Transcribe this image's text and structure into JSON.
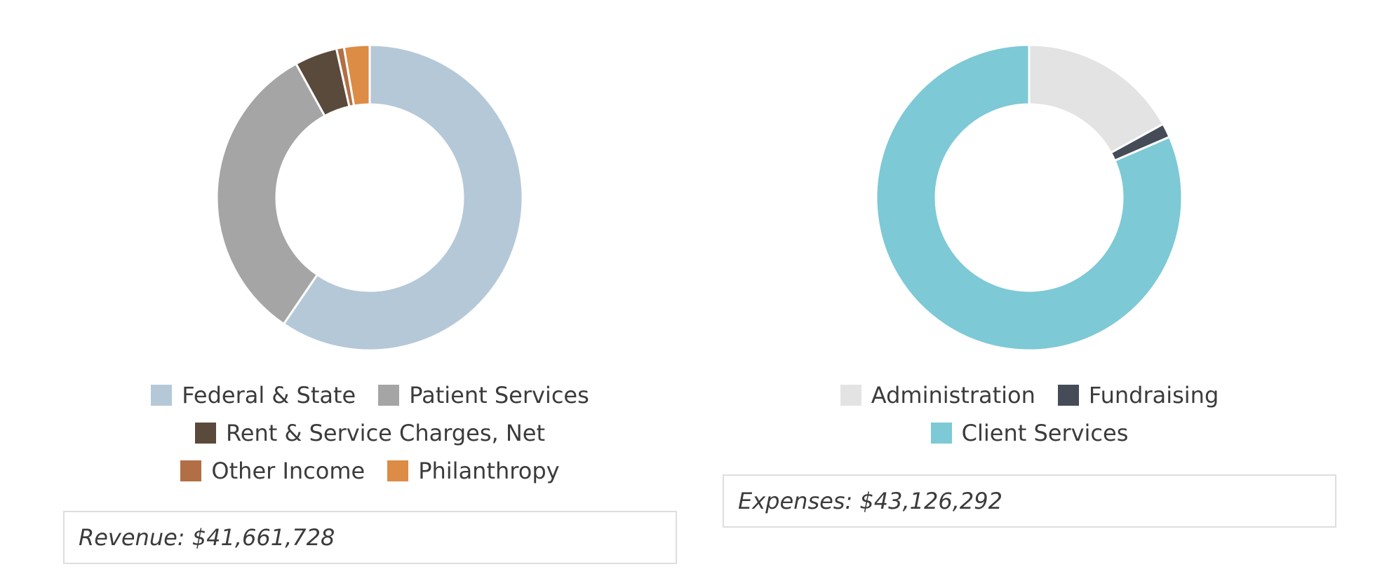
{
  "chart_data": [
    {
      "type": "pie",
      "variant": "donut",
      "categories": [
        "Federal & State",
        "Patient Services",
        "Rent & Service Charges, Net",
        "Other Income",
        "Philanthropy"
      ],
      "values": [
        59.5,
        32.5,
        4.5,
        0.8,
        2.7
      ],
      "colors": [
        "#b5c8d8",
        "#a5a5a5",
        "#5a4a3c",
        "#b26f45",
        "#dc8c45"
      ],
      "legend_rows": [
        [
          0,
          1
        ],
        [
          2
        ],
        [
          3,
          4
        ]
      ],
      "legend_position": "bottom",
      "total_label": "Revenue: $41,661,728"
    },
    {
      "type": "pie",
      "variant": "donut",
      "categories": [
        "Administration",
        "Fundraising",
        "Client Services"
      ],
      "values": [
        17.0,
        1.5,
        81.5
      ],
      "colors": [
        "#e3e3e4",
        "#454c57",
        "#7dc9d6"
      ],
      "legend_rows": [
        [
          0,
          1
        ],
        [
          2
        ]
      ],
      "legend_position": "bottom",
      "total_label": "Expenses: $43,126,292"
    }
  ]
}
